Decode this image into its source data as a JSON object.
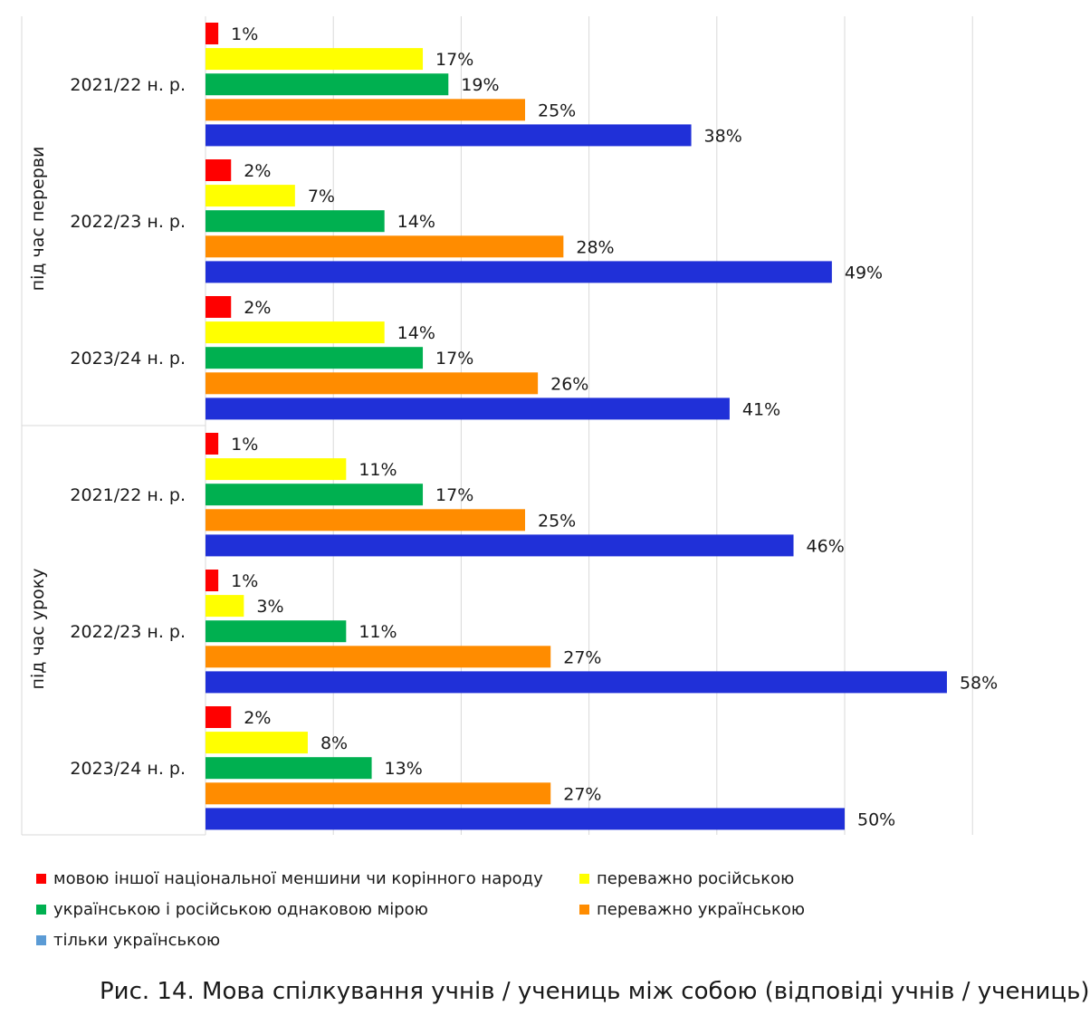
{
  "chart_data": {
    "type": "bar",
    "orientation": "horizontal",
    "title": "Рис. 14. Мова спілкування учнів / учениць між собою (відповіді учнів / учениць)",
    "value_suffix": "%",
    "xlim": [
      0,
      60
    ],
    "grid": true,
    "groups": [
      {
        "label": "під час перерви",
        "subgroups": [
          {
            "label": "2021/22 н. р.",
            "values": [
              1,
              17,
              19,
              25,
              38
            ]
          },
          {
            "label": "2022/23 н. р.",
            "values": [
              2,
              7,
              14,
              28,
              49
            ]
          },
          {
            "label": "2023/24 н. р.",
            "values": [
              2,
              14,
              17,
              26,
              41
            ]
          }
        ]
      },
      {
        "label": "під час уроку",
        "subgroups": [
          {
            "label": "2021/22 н. р.",
            "values": [
              1,
              11,
              17,
              25,
              46
            ]
          },
          {
            "label": "2022/23 н. р.",
            "values": [
              1,
              3,
              11,
              27,
              58
            ]
          },
          {
            "label": "2023/24 н. р.",
            "values": [
              2,
              8,
              13,
              27,
              50
            ]
          }
        ]
      }
    ],
    "series": [
      {
        "name": "мовою іншої національної меншини чи корінного народу",
        "color": "#ff0000"
      },
      {
        "name": "переважно російською",
        "color": "#ffff00"
      },
      {
        "name": "українською і російською однаковою мірою",
        "color": "#00b050"
      },
      {
        "name": "переважно українською",
        "color": "#ff8c00"
      },
      {
        "name": "тільки українською",
        "color": "#2030d8",
        "legend_color": "#5b9bd5"
      }
    ]
  }
}
